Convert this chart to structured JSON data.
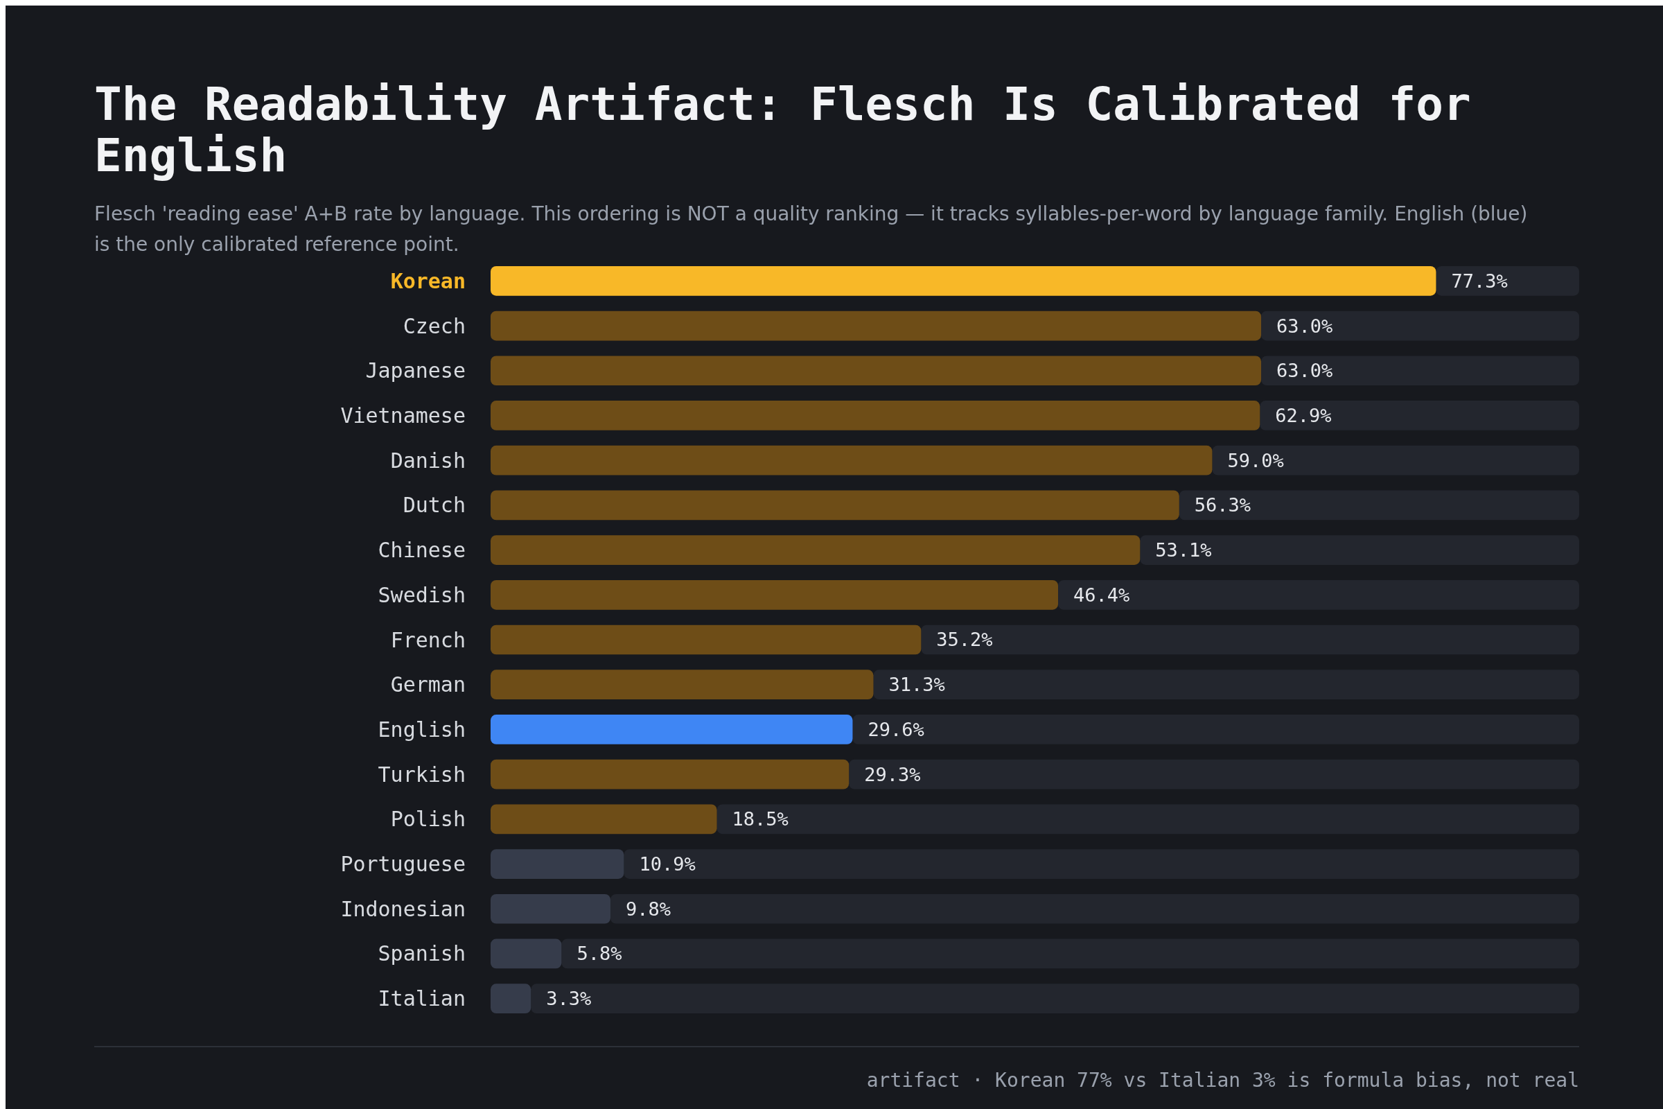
{
  "chart_data": {
    "type": "bar",
    "orientation": "horizontal",
    "title": "The Readability Artifact: Flesch Is Calibrated for English",
    "subtitle": "Flesch 'reading ease' A+B rate by language. This ordering is NOT a quality ranking — it tracks syllables-per-word by language family. English (blue) is the only calibrated reference point.",
    "categories": [
      "Korean",
      "Czech",
      "Japanese",
      "Vietnamese",
      "Danish",
      "Dutch",
      "Chinese",
      "Swedish",
      "French",
      "German",
      "English",
      "Turkish",
      "Polish",
      "Portuguese",
      "Indonesian",
      "Spanish",
      "Italian"
    ],
    "values": [
      77.3,
      63.0,
      63.0,
      62.9,
      59.0,
      56.3,
      53.1,
      46.4,
      35.2,
      31.3,
      29.6,
      29.3,
      18.5,
      10.9,
      9.8,
      5.8,
      3.3
    ],
    "value_labels": [
      "77.3%",
      "63.0%",
      "63.0%",
      "62.9%",
      "59.0%",
      "56.3%",
      "53.1%",
      "46.4%",
      "35.2%",
      "31.3%",
      "29.6%",
      "29.3%",
      "18.5%",
      "10.9%",
      "9.8%",
      "5.8%",
      "3.3%"
    ],
    "colors": [
      "#f8b828",
      "#6e4d17",
      "#6e4d17",
      "#6e4d17",
      "#6e4d17",
      "#6e4d17",
      "#6e4d17",
      "#6e4d17",
      "#6e4d17",
      "#6e4d17",
      "#3f86f4",
      "#6e4d17",
      "#6e4d17",
      "#363c4b",
      "#363c4b",
      "#363c4b",
      "#363c4b"
    ],
    "xlim": [
      0,
      89
    ],
    "tick_labels": "y",
    "annotations": [
      "artifact · Korean 77% vs Italian 3% is formula bias, not real"
    ]
  }
}
